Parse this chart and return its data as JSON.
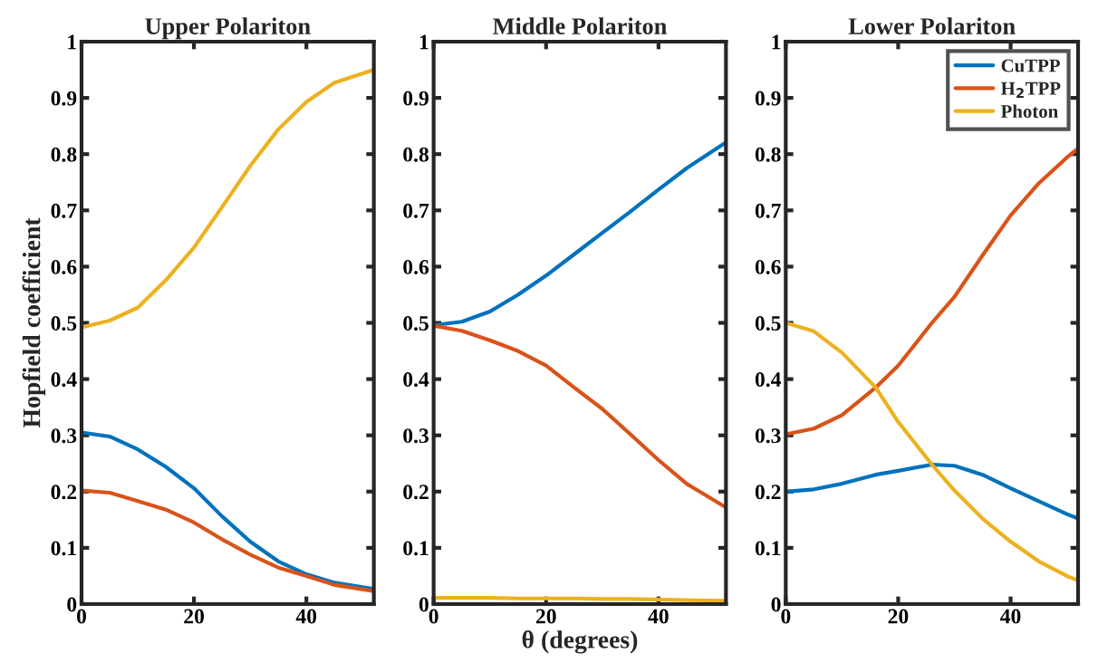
{
  "chart_data": [
    {
      "type": "line",
      "title": "Upper Polariton",
      "ylabel": "Hopfield coefficient",
      "xlim": [
        0,
        52
      ],
      "xticks": [
        0,
        20,
        40
      ],
      "ylim": [
        0,
        1
      ],
      "yticks": [
        0,
        0.1,
        0.2,
        0.3,
        0.4,
        0.5,
        0.6,
        0.7,
        0.8,
        0.9,
        1
      ],
      "grid": false,
      "legend": false,
      "x": [
        0,
        5,
        10,
        15,
        20,
        25,
        30,
        35,
        40,
        45,
        52
      ],
      "series": [
        {
          "color": "#0072bd",
          "values": [
            0.305,
            0.298,
            0.275,
            0.244,
            0.206,
            0.156,
            0.111,
            0.076,
            0.053,
            0.038,
            0.027
          ]
        },
        {
          "color": "#d95319",
          "values": [
            0.202,
            0.198,
            0.183,
            0.168,
            0.145,
            0.115,
            0.088,
            0.065,
            0.05,
            0.034,
            0.023
          ]
        },
        {
          "color": "#edb120",
          "values": [
            0.492,
            0.504,
            0.527,
            0.576,
            0.634,
            0.706,
            0.779,
            0.844,
            0.893,
            0.927,
            0.95
          ]
        }
      ]
    },
    {
      "type": "line",
      "title": "Middle Polariton",
      "xlabel": "θ (degrees)",
      "xlim": [
        0,
        52
      ],
      "xticks": [
        0,
        20,
        40
      ],
      "ylim": [
        0,
        1
      ],
      "yticks": [
        0,
        0.1,
        0.2,
        0.3,
        0.4,
        0.5,
        0.6,
        0.7,
        0.8,
        0.9,
        1
      ],
      "grid": false,
      "legend": false,
      "x": [
        0,
        5,
        10,
        15,
        20,
        25,
        30,
        35,
        40,
        45,
        52
      ],
      "series": [
        {
          "color": "#0072bd",
          "values": [
            0.496,
            0.502,
            0.52,
            0.55,
            0.584,
            0.622,
            0.66,
            0.698,
            0.737,
            0.775,
            0.821
          ]
        },
        {
          "color": "#d95319",
          "values": [
            0.495,
            0.486,
            0.469,
            0.45,
            0.424,
            0.385,
            0.347,
            0.302,
            0.256,
            0.214,
            0.172
          ]
        },
        {
          "color": "#edb120",
          "values": [
            0.011,
            0.011,
            0.011,
            0.01,
            0.01,
            0.01,
            0.009,
            0.009,
            0.008,
            0.007,
            0.006
          ]
        }
      ]
    },
    {
      "type": "line",
      "title": "Lower Polariton",
      "xlim": [
        0,
        52
      ],
      "xticks": [
        0,
        20,
        40
      ],
      "ylim": [
        0,
        1
      ],
      "yticks": [
        0,
        0.1,
        0.2,
        0.3,
        0.4,
        0.5,
        0.6,
        0.7,
        0.8,
        0.9,
        1
      ],
      "grid": false,
      "legend": "top right",
      "x": [
        0,
        5,
        10,
        16,
        20,
        26,
        30,
        35,
        40,
        45,
        50,
        52
      ],
      "series": [
        {
          "name": "CuTPP",
          "color": "#0072bd",
          "values": [
            0.2,
            0.204,
            0.214,
            0.23,
            0.237,
            0.248,
            0.246,
            0.23,
            0.206,
            0.183,
            0.16,
            0.152
          ]
        },
        {
          "name": "H$_{2}$TPP",
          "color": "#d95319",
          "values": [
            0.302,
            0.312,
            0.336,
            0.385,
            0.424,
            0.5,
            0.546,
            0.62,
            0.691,
            0.748,
            0.794,
            0.81
          ]
        },
        {
          "name": "Photon",
          "color": "#edb120",
          "values": [
            0.5,
            0.485,
            0.447,
            0.385,
            0.324,
            0.248,
            0.202,
            0.152,
            0.111,
            0.076,
            0.05,
            0.042
          ]
        }
      ]
    }
  ]
}
